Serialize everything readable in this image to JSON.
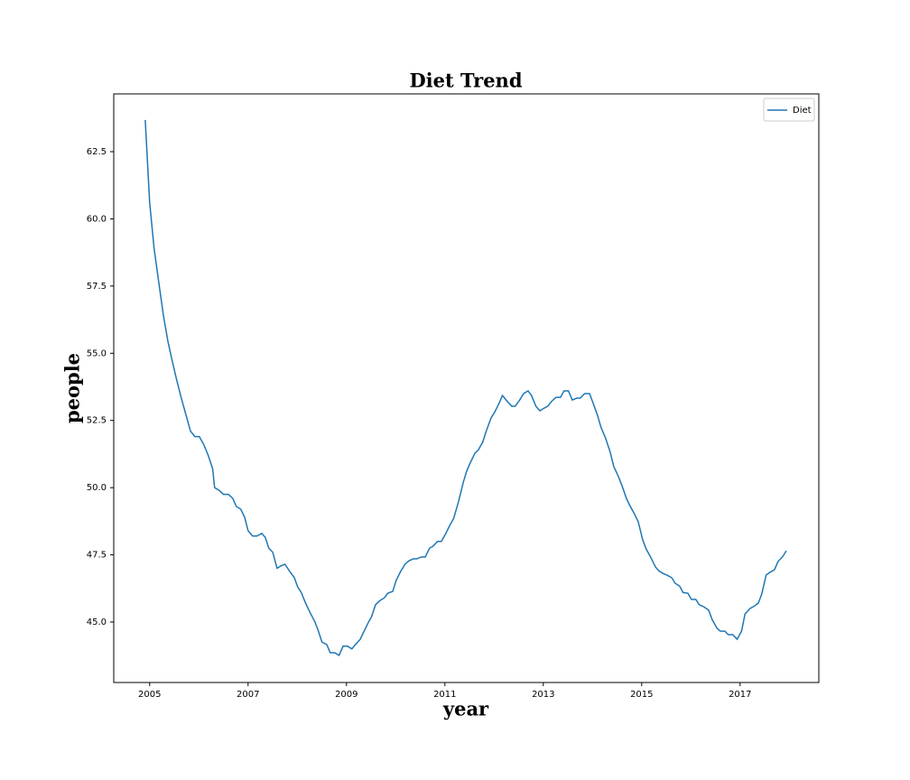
{
  "chart_data": {
    "type": "line",
    "title": "Diet Trend",
    "x_label": "year",
    "y_label": "people",
    "x": [
      2004.91,
      2005.0,
      2005.09,
      2005.18,
      2005.28,
      2005.37,
      2005.46,
      2005.55,
      2005.64,
      2005.73,
      2005.83,
      2005.92,
      2006.01,
      2006.1,
      2006.19,
      2006.28,
      2006.32,
      2006.41,
      2006.5,
      2006.6,
      2006.69,
      2006.76,
      2006.85,
      2006.93,
      2007.0,
      2007.09,
      2007.18,
      2007.28,
      2007.35,
      2007.42,
      2007.5,
      2007.59,
      2007.66,
      2007.75,
      2007.84,
      2007.94,
      2008.01,
      2008.08,
      2008.17,
      2008.26,
      2008.36,
      2008.43,
      2008.5,
      2008.6,
      2008.67,
      2008.76,
      2008.85,
      2008.93,
      2009.02,
      2009.11,
      2009.18,
      2009.28,
      2009.35,
      2009.44,
      2009.51,
      2009.59,
      2009.68,
      2009.77,
      2009.84,
      2009.94,
      2010.01,
      2010.1,
      2010.19,
      2010.27,
      2010.36,
      2010.43,
      2010.52,
      2010.6,
      2010.69,
      2010.76,
      2010.85,
      2010.93,
      2011.02,
      2011.09,
      2011.18,
      2011.28,
      2011.37,
      2011.44,
      2011.51,
      2011.61,
      2011.68,
      2011.77,
      2011.84,
      2011.94,
      2012.01,
      2012.1,
      2012.17,
      2012.27,
      2012.36,
      2012.43,
      2012.52,
      2012.6,
      2012.69,
      2012.76,
      2012.85,
      2012.93,
      2013.02,
      2013.09,
      2013.18,
      2013.26,
      2013.35,
      2013.42,
      2013.51,
      2013.59,
      2013.68,
      2013.75,
      2013.84,
      2013.94,
      2014.01,
      2014.1,
      2014.17,
      2014.27,
      2014.36,
      2014.43,
      2014.53,
      2014.6,
      2014.69,
      2014.76,
      2014.85,
      2014.93,
      2015.02,
      2015.09,
      2015.18,
      2015.28,
      2015.35,
      2015.44,
      2015.51,
      2015.61,
      2015.68,
      2015.77,
      2015.84,
      2015.94,
      2016.01,
      2016.1,
      2016.17,
      2016.26,
      2016.36,
      2016.43,
      2016.53,
      2016.6,
      2016.69,
      2016.76,
      2016.85,
      2016.94,
      2017.03,
      2017.1,
      2017.2,
      2017.27,
      2017.37,
      2017.44,
      2017.53,
      2017.61,
      2017.7,
      2017.77,
      2017.86,
      2017.94
    ],
    "series": [
      {
        "name": "Diet",
        "color": "#1f77b4",
        "values": [
          63.68,
          60.6,
          58.9,
          57.7,
          56.4,
          55.45,
          54.7,
          54.0,
          53.35,
          52.76,
          52.1,
          51.9,
          51.9,
          51.6,
          51.2,
          50.7,
          50.0,
          49.9,
          49.75,
          49.75,
          49.6,
          49.3,
          49.2,
          48.9,
          48.4,
          48.2,
          48.2,
          48.3,
          48.15,
          47.75,
          47.6,
          47.0,
          47.08,
          47.15,
          46.9,
          46.65,
          46.3,
          46.1,
          45.7,
          45.35,
          45.0,
          44.66,
          44.26,
          44.16,
          43.86,
          43.86,
          43.76,
          44.1,
          44.1,
          44.0,
          44.16,
          44.36,
          44.63,
          44.97,
          45.2,
          45.64,
          45.8,
          45.9,
          46.07,
          46.14,
          46.55,
          46.88,
          47.15,
          47.28,
          47.35,
          47.35,
          47.42,
          47.42,
          47.75,
          47.82,
          48.0,
          48.0,
          48.3,
          48.56,
          48.86,
          49.5,
          50.17,
          50.6,
          50.9,
          51.28,
          51.4,
          51.7,
          52.1,
          52.6,
          52.8,
          53.13,
          53.43,
          53.2,
          53.03,
          53.03,
          53.26,
          53.5,
          53.6,
          53.43,
          53.03,
          52.86,
          52.96,
          53.03,
          53.23,
          53.36,
          53.36,
          53.6,
          53.6,
          53.26,
          53.33,
          53.33,
          53.5,
          53.5,
          53.16,
          52.7,
          52.26,
          51.82,
          51.32,
          50.8,
          50.4,
          50.07,
          49.6,
          49.33,
          49.03,
          48.73,
          48.06,
          47.72,
          47.42,
          47.05,
          46.9,
          46.8,
          46.75,
          46.65,
          46.44,
          46.34,
          46.1,
          46.07,
          45.84,
          45.84,
          45.64,
          45.57,
          45.44,
          45.1,
          44.77,
          44.66,
          44.66,
          44.53,
          44.53,
          44.36,
          44.66,
          45.3,
          45.5,
          45.57,
          45.7,
          46.04,
          46.75,
          46.85,
          46.95,
          47.25,
          47.42,
          47.65
        ]
      }
    ],
    "xlim": [
      2004.27,
      2018.6
    ],
    "xticks": [
      2005,
      2007,
      2009,
      2011,
      2013,
      2015,
      2017
    ],
    "ylim": [
      42.75,
      64.65
    ],
    "yticks": [
      {
        "value": 45,
        "label": "45.0"
      },
      {
        "value": 47.5,
        "label": "47.5"
      },
      {
        "value": 50,
        "label": "50.0"
      },
      {
        "value": 52.5,
        "label": "52.5"
      },
      {
        "value": 55,
        "label": "55.0"
      },
      {
        "value": 57.5,
        "label": "57.5"
      },
      {
        "value": 60,
        "label": "60.0"
      },
      {
        "value": 62.5,
        "label": "62.5"
      }
    ],
    "grid": false,
    "legend": "upper right"
  }
}
